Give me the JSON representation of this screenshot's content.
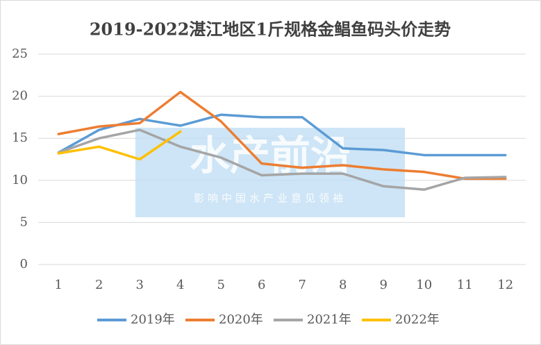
{
  "chart_data": {
    "type": "line",
    "title": "2019-2022湛江地区1斤规格金鲳鱼码头价走势",
    "categories": [
      "1",
      "2",
      "3",
      "4",
      "5",
      "6",
      "7",
      "8",
      "9",
      "10",
      "11",
      "12"
    ],
    "series": [
      {
        "name": "2019年",
        "color": "#5b9bd5",
        "values": [
          13.3,
          16.0,
          17.3,
          16.5,
          17.8,
          17.5,
          17.5,
          13.8,
          13.6,
          13.0,
          13.0,
          13.0
        ]
      },
      {
        "name": "2020年",
        "color": "#ed7d31",
        "values": [
          15.5,
          16.4,
          16.8,
          20.5,
          17.0,
          12.0,
          11.5,
          11.8,
          11.3,
          11.0,
          10.2,
          10.2
        ]
      },
      {
        "name": "2021年",
        "color": "#a5a5a5",
        "values": [
          13.3,
          15.0,
          16.0,
          14.0,
          12.7,
          10.6,
          10.8,
          10.8,
          9.3,
          8.9,
          10.3,
          10.4
        ]
      },
      {
        "name": "2022年",
        "color": "#ffc000",
        "values": [
          13.2,
          14.0,
          12.5,
          15.8,
          null,
          null,
          null,
          null,
          null,
          null,
          null,
          null
        ]
      }
    ],
    "ylim": [
      0,
      25
    ],
    "yticks": [
      0,
      5,
      10,
      15,
      20,
      25
    ],
    "grid": true,
    "legend": "bottom",
    "watermark": "水产前沿",
    "watermark_subtitle": "影响中国水产业意见领袖"
  }
}
